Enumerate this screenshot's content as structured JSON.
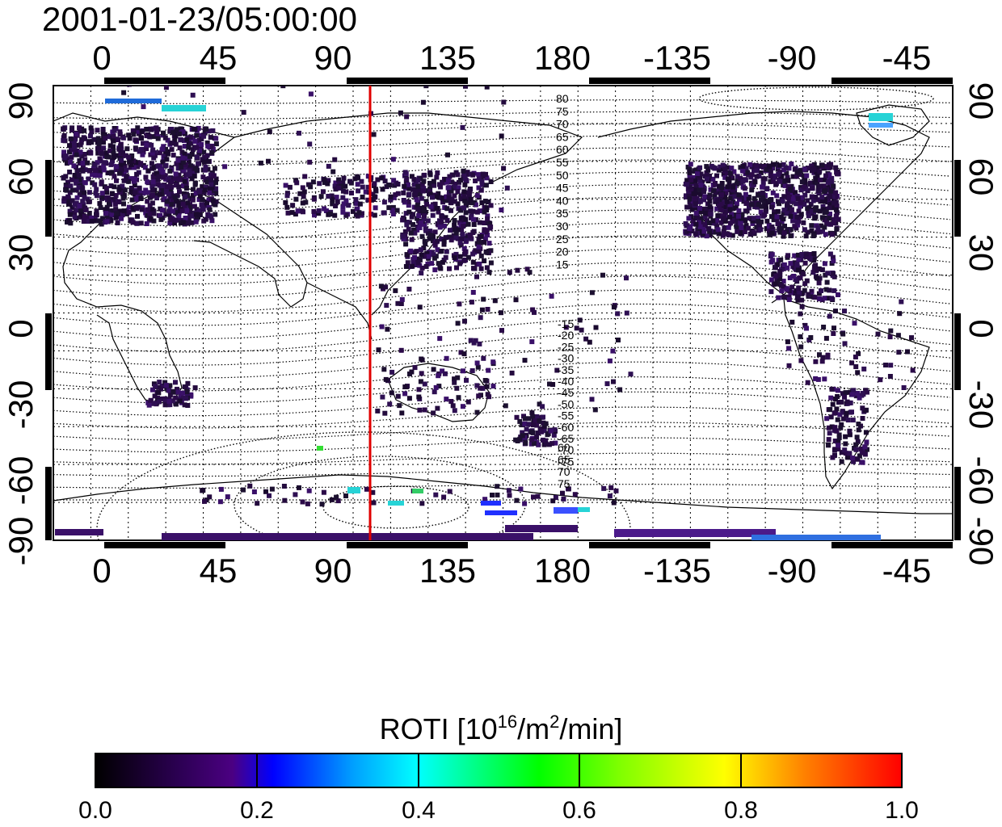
{
  "title": "2001-01-23/05:00:00",
  "axes": {
    "x_ticks": [
      "0",
      "45",
      "90",
      "135",
      "180",
      "-135",
      "-90",
      "-45"
    ],
    "y_ticks": [
      "90",
      "60",
      "30",
      "0",
      "-30",
      "-60",
      "-90"
    ]
  },
  "contour_labels": {
    "north": [
      "80",
      "75",
      "70",
      "65",
      "60",
      "55",
      "50",
      "45",
      "40",
      "35",
      "30",
      "25",
      "20",
      "15"
    ],
    "south": [
      "-15",
      "-20",
      "-25",
      "-30",
      "-35",
      "-40",
      "-45",
      "-50",
      "-55",
      "-60",
      "-65",
      "-70",
      "-75"
    ],
    "south_pole": [
      "60",
      "65",
      "70",
      "75"
    ]
  },
  "colorbar": {
    "label_main": "ROTI  [10",
    "label_exp1": "16",
    "label_mid": "/m",
    "label_exp2": "2",
    "label_end": "/min]",
    "ticks": [
      "0.0",
      "0.2",
      "0.4",
      "0.6",
      "0.8",
      "1.0"
    ],
    "stops": [
      "#000000",
      "#2a0050",
      "#4b0082",
      "#0000ff",
      "#00a0ff",
      "#00ffff",
      "#00ff00",
      "#7fff00",
      "#ffff00",
      "#ff8000",
      "#ff0000"
    ]
  },
  "colors": {
    "marker_line": "#e00000",
    "grid": "#000000",
    "data_dark": "#1a0a2e",
    "data_purple": "#3a1068"
  },
  "chart_data": {
    "type": "heatmap",
    "title": "2001-01-23/05:00:00",
    "x_axis": {
      "label": "",
      "ticks": [
        0,
        45,
        90,
        135,
        180,
        -135,
        -90,
        -45
      ]
    },
    "y_axis": {
      "label": "",
      "range": [
        -90,
        90
      ],
      "ticks": [
        90,
        60,
        30,
        0,
        -30,
        -60,
        -90
      ]
    },
    "colorbar": {
      "label": "ROTI [10^16/m^2/min]",
      "range": [
        0.0,
        1.0
      ]
    },
    "marker_longitude": 105,
    "grid": true
  }
}
